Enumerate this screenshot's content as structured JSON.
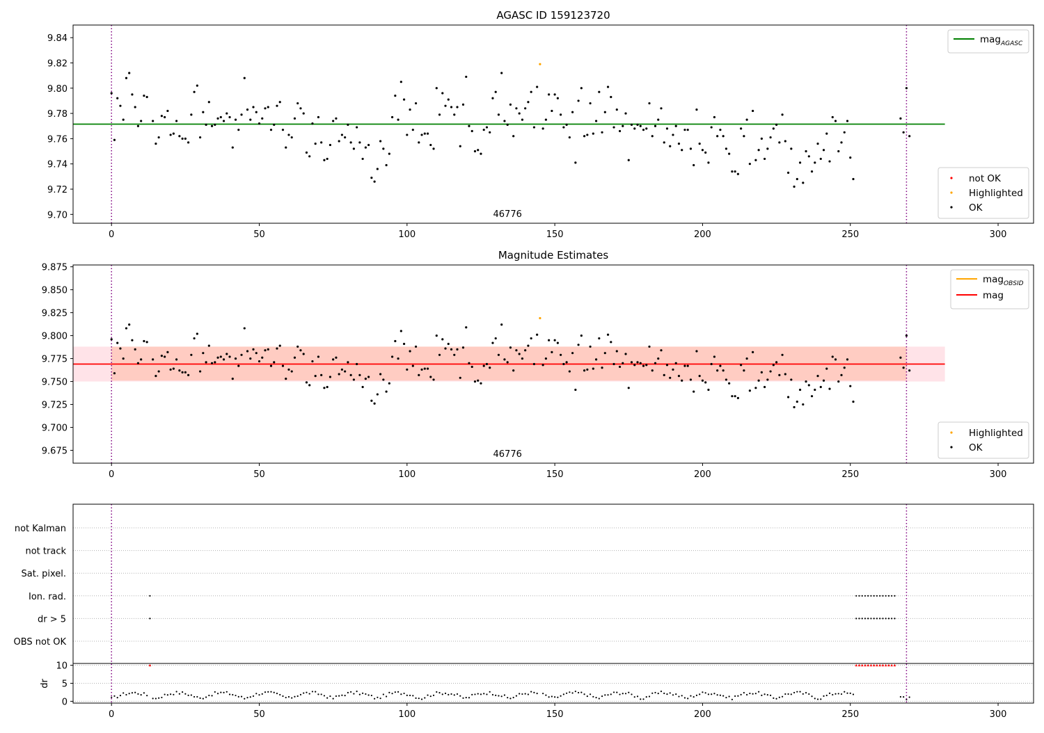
{
  "chart_data": [
    {
      "type": "scatter",
      "title": "AGASC ID 159123720",
      "xlim": [
        -13,
        312
      ],
      "ylim": [
        9.693,
        9.85
      ],
      "xticks": [
        0,
        50,
        100,
        150,
        200,
        250,
        300
      ],
      "yticks": [
        9.7,
        9.72,
        9.74,
        9.76,
        9.78,
        9.8,
        9.82,
        9.84
      ],
      "ytick_labels": [
        "9.70",
        "9.72",
        "9.74",
        "9.76",
        "9.78",
        "9.80",
        "9.82",
        "9.84"
      ],
      "annotation": "46776",
      "annotation_x": 134,
      "vlines": [
        0,
        269
      ],
      "hline": {
        "y": 9.7715,
        "x_end": 282,
        "color": "#008000"
      },
      "legend_lines": [
        {
          "label": "mag",
          "sub": "AGASC",
          "color": "#008000"
        }
      ],
      "legend_points": [
        {
          "label": "not OK",
          "color": "#ff0000"
        },
        {
          "label": "Highlighted",
          "color": "#ffa500"
        },
        {
          "label": "OK",
          "color": "#000000"
        }
      ],
      "highlighted": [
        {
          "x": 145,
          "y": 9.819
        }
      ],
      "series_ok": [
        [
          0,
          9.796
        ],
        [
          1,
          9.759
        ],
        [
          2,
          9.792
        ],
        [
          3,
          9.786
        ],
        [
          4,
          9.775
        ],
        [
          5,
          9.808
        ],
        [
          6,
          9.812
        ],
        [
          7,
          9.795
        ],
        [
          8,
          9.785
        ],
        [
          9,
          9.77
        ],
        [
          10,
          9.774
        ],
        [
          11,
          9.794
        ],
        [
          12,
          9.793
        ],
        [
          14,
          9.774
        ],
        [
          15,
          9.756
        ],
        [
          16,
          9.761
        ],
        [
          17,
          9.778
        ],
        [
          18,
          9.777
        ],
        [
          19,
          9.782
        ],
        [
          20,
          9.763
        ],
        [
          21,
          9.764
        ],
        [
          22,
          9.774
        ],
        [
          23,
          9.762
        ],
        [
          24,
          9.76
        ],
        [
          25,
          9.76
        ],
        [
          26,
          9.757
        ],
        [
          27,
          9.779
        ],
        [
          28,
          9.797
        ],
        [
          29,
          9.802
        ],
        [
          30,
          9.761
        ],
        [
          31,
          9.781
        ],
        [
          32,
          9.771
        ],
        [
          33,
          9.789
        ],
        [
          34,
          9.77
        ],
        [
          35,
          9.771
        ],
        [
          36,
          9.776
        ],
        [
          37,
          9.777
        ],
        [
          38,
          9.774
        ],
        [
          39,
          9.78
        ],
        [
          40,
          9.777
        ],
        [
          41,
          9.753
        ],
        [
          42,
          9.775
        ],
        [
          43,
          9.767
        ],
        [
          44,
          9.779
        ],
        [
          45,
          9.808
        ],
        [
          46,
          9.783
        ],
        [
          47,
          9.775
        ],
        [
          48,
          9.785
        ],
        [
          49,
          9.781
        ],
        [
          50,
          9.772
        ],
        [
          51,
          9.776
        ],
        [
          52,
          9.784
        ],
        [
          53,
          9.785
        ],
        [
          54,
          9.767
        ],
        [
          55,
          9.771
        ],
        [
          56,
          9.786
        ],
        [
          57,
          9.789
        ],
        [
          58,
          9.767
        ],
        [
          59,
          9.753
        ],
        [
          60,
          9.763
        ],
        [
          61,
          9.761
        ],
        [
          62,
          9.776
        ],
        [
          63,
          9.788
        ],
        [
          64,
          9.784
        ],
        [
          65,
          9.78
        ],
        [
          66,
          9.749
        ],
        [
          67,
          9.746
        ],
        [
          68,
          9.772
        ],
        [
          69,
          9.756
        ],
        [
          70,
          9.777
        ],
        [
          71,
          9.757
        ],
        [
          72,
          9.743
        ],
        [
          73,
          9.744
        ],
        [
          74,
          9.755
        ],
        [
          75,
          9.774
        ],
        [
          76,
          9.776
        ],
        [
          77,
          9.758
        ],
        [
          78,
          9.763
        ],
        [
          79,
          9.761
        ],
        [
          80,
          9.771
        ],
        [
          81,
          9.757
        ],
        [
          82,
          9.752
        ],
        [
          83,
          9.769
        ],
        [
          84,
          9.757
        ],
        [
          85,
          9.744
        ],
        [
          86,
          9.753
        ],
        [
          87,
          9.755
        ],
        [
          88,
          9.729
        ],
        [
          89,
          9.726
        ],
        [
          90,
          9.736
        ],
        [
          91,
          9.758
        ],
        [
          92,
          9.752
        ],
        [
          93,
          9.739
        ],
        [
          94,
          9.748
        ],
        [
          95,
          9.777
        ],
        [
          96,
          9.794
        ],
        [
          97,
          9.775
        ],
        [
          98,
          9.805
        ],
        [
          99,
          9.791
        ],
        [
          100,
          9.763
        ],
        [
          101,
          9.783
        ],
        [
          102,
          9.767
        ],
        [
          103,
          9.788
        ],
        [
          104,
          9.757
        ],
        [
          105,
          9.763
        ],
        [
          106,
          9.764
        ],
        [
          107,
          9.764
        ],
        [
          108,
          9.755
        ],
        [
          109,
          9.752
        ],
        [
          110,
          9.8
        ],
        [
          111,
          9.779
        ],
        [
          112,
          9.796
        ],
        [
          113,
          9.786
        ],
        [
          114,
          9.791
        ],
        [
          115,
          9.785
        ],
        [
          116,
          9.779
        ],
        [
          117,
          9.785
        ],
        [
          118,
          9.754
        ],
        [
          119,
          9.787
        ],
        [
          120,
          9.809
        ],
        [
          121,
          9.77
        ],
        [
          122,
          9.766
        ],
        [
          123,
          9.75
        ],
        [
          124,
          9.751
        ],
        [
          125,
          9.748
        ],
        [
          126,
          9.767
        ],
        [
          127,
          9.769
        ],
        [
          128,
          9.765
        ],
        [
          129,
          9.792
        ],
        [
          130,
          9.797
        ],
        [
          131,
          9.779
        ],
        [
          132,
          9.812
        ],
        [
          133,
          9.774
        ],
        [
          134,
          9.771
        ],
        [
          135,
          9.787
        ],
        [
          136,
          9.762
        ],
        [
          137,
          9.784
        ],
        [
          138,
          9.78
        ],
        [
          139,
          9.775
        ],
        [
          140,
          9.784
        ],
        [
          141,
          9.789
        ],
        [
          142,
          9.797
        ],
        [
          143,
          9.769
        ],
        [
          144,
          9.801
        ],
        [
          146,
          9.768
        ],
        [
          147,
          9.775
        ],
        [
          148,
          9.795
        ],
        [
          149,
          9.782
        ],
        [
          150,
          9.795
        ],
        [
          151,
          9.792
        ],
        [
          152,
          9.779
        ],
        [
          153,
          9.769
        ],
        [
          154,
          9.771
        ],
        [
          155,
          9.761
        ],
        [
          156,
          9.781
        ],
        [
          157,
          9.741
        ],
        [
          158,
          9.79
        ],
        [
          159,
          9.8
        ],
        [
          160,
          9.762
        ],
        [
          161,
          9.763
        ],
        [
          162,
          9.788
        ],
        [
          163,
          9.764
        ],
        [
          164,
          9.774
        ],
        [
          165,
          9.797
        ],
        [
          166,
          9.765
        ],
        [
          167,
          9.781
        ],
        [
          168,
          9.801
        ],
        [
          169,
          9.793
        ],
        [
          170,
          9.769
        ],
        [
          171,
          9.783
        ],
        [
          172,
          9.766
        ],
        [
          173,
          9.77
        ],
        [
          174,
          9.78
        ],
        [
          175,
          9.743
        ],
        [
          176,
          9.771
        ],
        [
          177,
          9.768
        ],
        [
          178,
          9.771
        ],
        [
          179,
          9.77
        ],
        [
          180,
          9.767
        ],
        [
          181,
          9.768
        ],
        [
          182,
          9.788
        ],
        [
          183,
          9.762
        ],
        [
          184,
          9.77
        ],
        [
          185,
          9.775
        ],
        [
          186,
          9.784
        ],
        [
          187,
          9.757
        ],
        [
          188,
          9.768
        ],
        [
          189,
          9.754
        ],
        [
          190,
          9.763
        ],
        [
          191,
          9.77
        ],
        [
          192,
          9.756
        ],
        [
          193,
          9.751
        ],
        [
          194,
          9.767
        ],
        [
          195,
          9.767
        ],
        [
          196,
          9.752
        ],
        [
          197,
          9.739
        ],
        [
          198,
          9.783
        ],
        [
          199,
          9.756
        ],
        [
          200,
          9.751
        ],
        [
          201,
          9.749
        ],
        [
          202,
          9.741
        ],
        [
          203,
          9.769
        ],
        [
          204,
          9.777
        ],
        [
          205,
          9.762
        ],
        [
          206,
          9.767
        ],
        [
          207,
          9.762
        ],
        [
          208,
          9.752
        ],
        [
          209,
          9.748
        ],
        [
          210,
          9.734
        ],
        [
          211,
          9.734
        ],
        [
          212,
          9.732
        ],
        [
          213,
          9.768
        ],
        [
          214,
          9.762
        ],
        [
          215,
          9.775
        ],
        [
          216,
          9.74
        ],
        [
          217,
          9.782
        ],
        [
          218,
          9.743
        ],
        [
          219,
          9.751
        ],
        [
          220,
          9.76
        ],
        [
          221,
          9.744
        ],
        [
          222,
          9.752
        ],
        [
          223,
          9.761
        ],
        [
          224,
          9.768
        ],
        [
          225,
          9.771
        ],
        [
          226,
          9.757
        ],
        [
          227,
          9.779
        ],
        [
          228,
          9.758
        ],
        [
          229,
          9.733
        ],
        [
          230,
          9.752
        ],
        [
          231,
          9.722
        ],
        [
          232,
          9.728
        ],
        [
          233,
          9.741
        ],
        [
          234,
          9.725
        ],
        [
          235,
          9.75
        ],
        [
          236,
          9.746
        ],
        [
          237,
          9.734
        ],
        [
          238,
          9.741
        ],
        [
          239,
          9.756
        ],
        [
          240,
          9.744
        ],
        [
          241,
          9.751
        ],
        [
          242,
          9.764
        ],
        [
          243,
          9.742
        ],
        [
          244,
          9.777
        ],
        [
          245,
          9.774
        ],
        [
          246,
          9.75
        ],
        [
          247,
          9.757
        ],
        [
          248,
          9.765
        ],
        [
          249,
          9.774
        ],
        [
          250,
          9.745
        ],
        [
          251,
          9.728
        ],
        [
          267,
          9.776
        ],
        [
          268,
          9.765
        ],
        [
          269,
          9.8
        ],
        [
          270,
          9.762
        ]
      ]
    },
    {
      "type": "scatter",
      "title": "Magnitude Estimates",
      "xlim": [
        -13,
        312
      ],
      "ylim": [
        9.661,
        9.877
      ],
      "xticks": [
        0,
        50,
        100,
        150,
        200,
        250,
        300
      ],
      "yticks": [
        9.675,
        9.7,
        9.725,
        9.75,
        9.775,
        9.8,
        9.825,
        9.85,
        9.875
      ],
      "ytick_labels": [
        "9.675",
        "9.700",
        "9.725",
        "9.750",
        "9.775",
        "9.800",
        "9.825",
        "9.850",
        "9.875"
      ],
      "annotation": "46776",
      "annotation_x": 134,
      "vlines": [
        0,
        269
      ],
      "hline": {
        "y": 9.769,
        "x_end": 282,
        "color": "#ff0000"
      },
      "bands": [
        {
          "x0": -13,
          "x1": 282,
          "y0": 9.75,
          "y1": 9.788,
          "color": "#ffc0cb",
          "opacity": 0.45
        },
        {
          "x0": 0,
          "x1": 269,
          "y0": 9.751,
          "y1": 9.788,
          "color": "#ffa07a",
          "opacity": 0.35
        }
      ],
      "legend_lines": [
        {
          "label": "mag",
          "sub": "OBSID",
          "color": "#ffa500"
        },
        {
          "label": "mag",
          "sub": "",
          "color": "#ff0000"
        }
      ],
      "legend_points": [
        {
          "label": "Highlighted",
          "color": "#ffa500"
        },
        {
          "label": "OK",
          "color": "#000000"
        }
      ],
      "highlighted": [
        {
          "x": 145,
          "y": 9.819
        }
      ],
      "series_ok_ref": 0
    },
    {
      "type": "scatter",
      "title": "",
      "xlim": [
        -13,
        312
      ],
      "xticks": [
        0,
        50,
        100,
        150,
        200,
        250,
        300
      ],
      "vlines": [
        0,
        269
      ],
      "flag_labels": [
        "not Kalman",
        "not track",
        "Sat. pixel.",
        "Ion. rad.",
        "dr > 5",
        "OBS not OK"
      ],
      "flag_points": {
        "Ion. rad.": [
          13,
          252,
          253,
          254,
          255,
          256,
          257,
          258,
          259,
          260,
          261,
          262,
          263,
          264,
          265
        ],
        "dr > 5": [
          13,
          252,
          253,
          254,
          255,
          256,
          257,
          258,
          259,
          260,
          261,
          262,
          263,
          264,
          265
        ]
      },
      "dr_ylabel": "dr",
      "dr_ylim": [
        -0.5,
        10.5
      ],
      "dr_yticks": [
        0,
        5,
        10
      ],
      "dr_clipped_x": [
        13,
        252,
        253,
        254,
        255,
        256,
        257,
        258,
        259,
        260,
        261,
        262,
        263,
        264,
        265
      ],
      "dr_seed": 17
    }
  ]
}
